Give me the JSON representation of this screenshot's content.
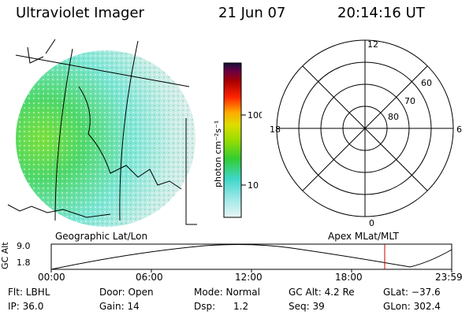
{
  "header": {
    "title": "Ultraviolet Imager",
    "date": "21 Jun 07",
    "time": "20:14:16 UT"
  },
  "colorbar": {
    "unit_label": "photon cm⁻²s⁻¹",
    "ticks": [
      "100",
      "10"
    ]
  },
  "polar": {
    "hour_labels": [
      "12",
      "18",
      "6",
      "0"
    ],
    "lat_labels": [
      "60",
      "70",
      "80"
    ]
  },
  "map_caption": "Geographic Lat/Lon",
  "polar_caption": "Apex MLat/MLT",
  "altitude_plot": {
    "ylabel": "GC Alt",
    "yticks": [
      "9.0",
      "1.8"
    ],
    "xticks": [
      "00:00",
      "06:00",
      "12:00",
      "18:00",
      "23:59"
    ]
  },
  "status": {
    "row1": [
      "Flt: LBHL",
      "Door: Open",
      "Mode: Normal",
      "GC Alt: 4.2 Re",
      "GLat: −37.6"
    ],
    "row2": [
      "IP: 36.0",
      "Gain: 14",
      "Dsp:      1.2",
      "Seq: 39",
      "GLon: 302.4"
    ]
  },
  "colors": {
    "accent_red": "#cc0000"
  }
}
